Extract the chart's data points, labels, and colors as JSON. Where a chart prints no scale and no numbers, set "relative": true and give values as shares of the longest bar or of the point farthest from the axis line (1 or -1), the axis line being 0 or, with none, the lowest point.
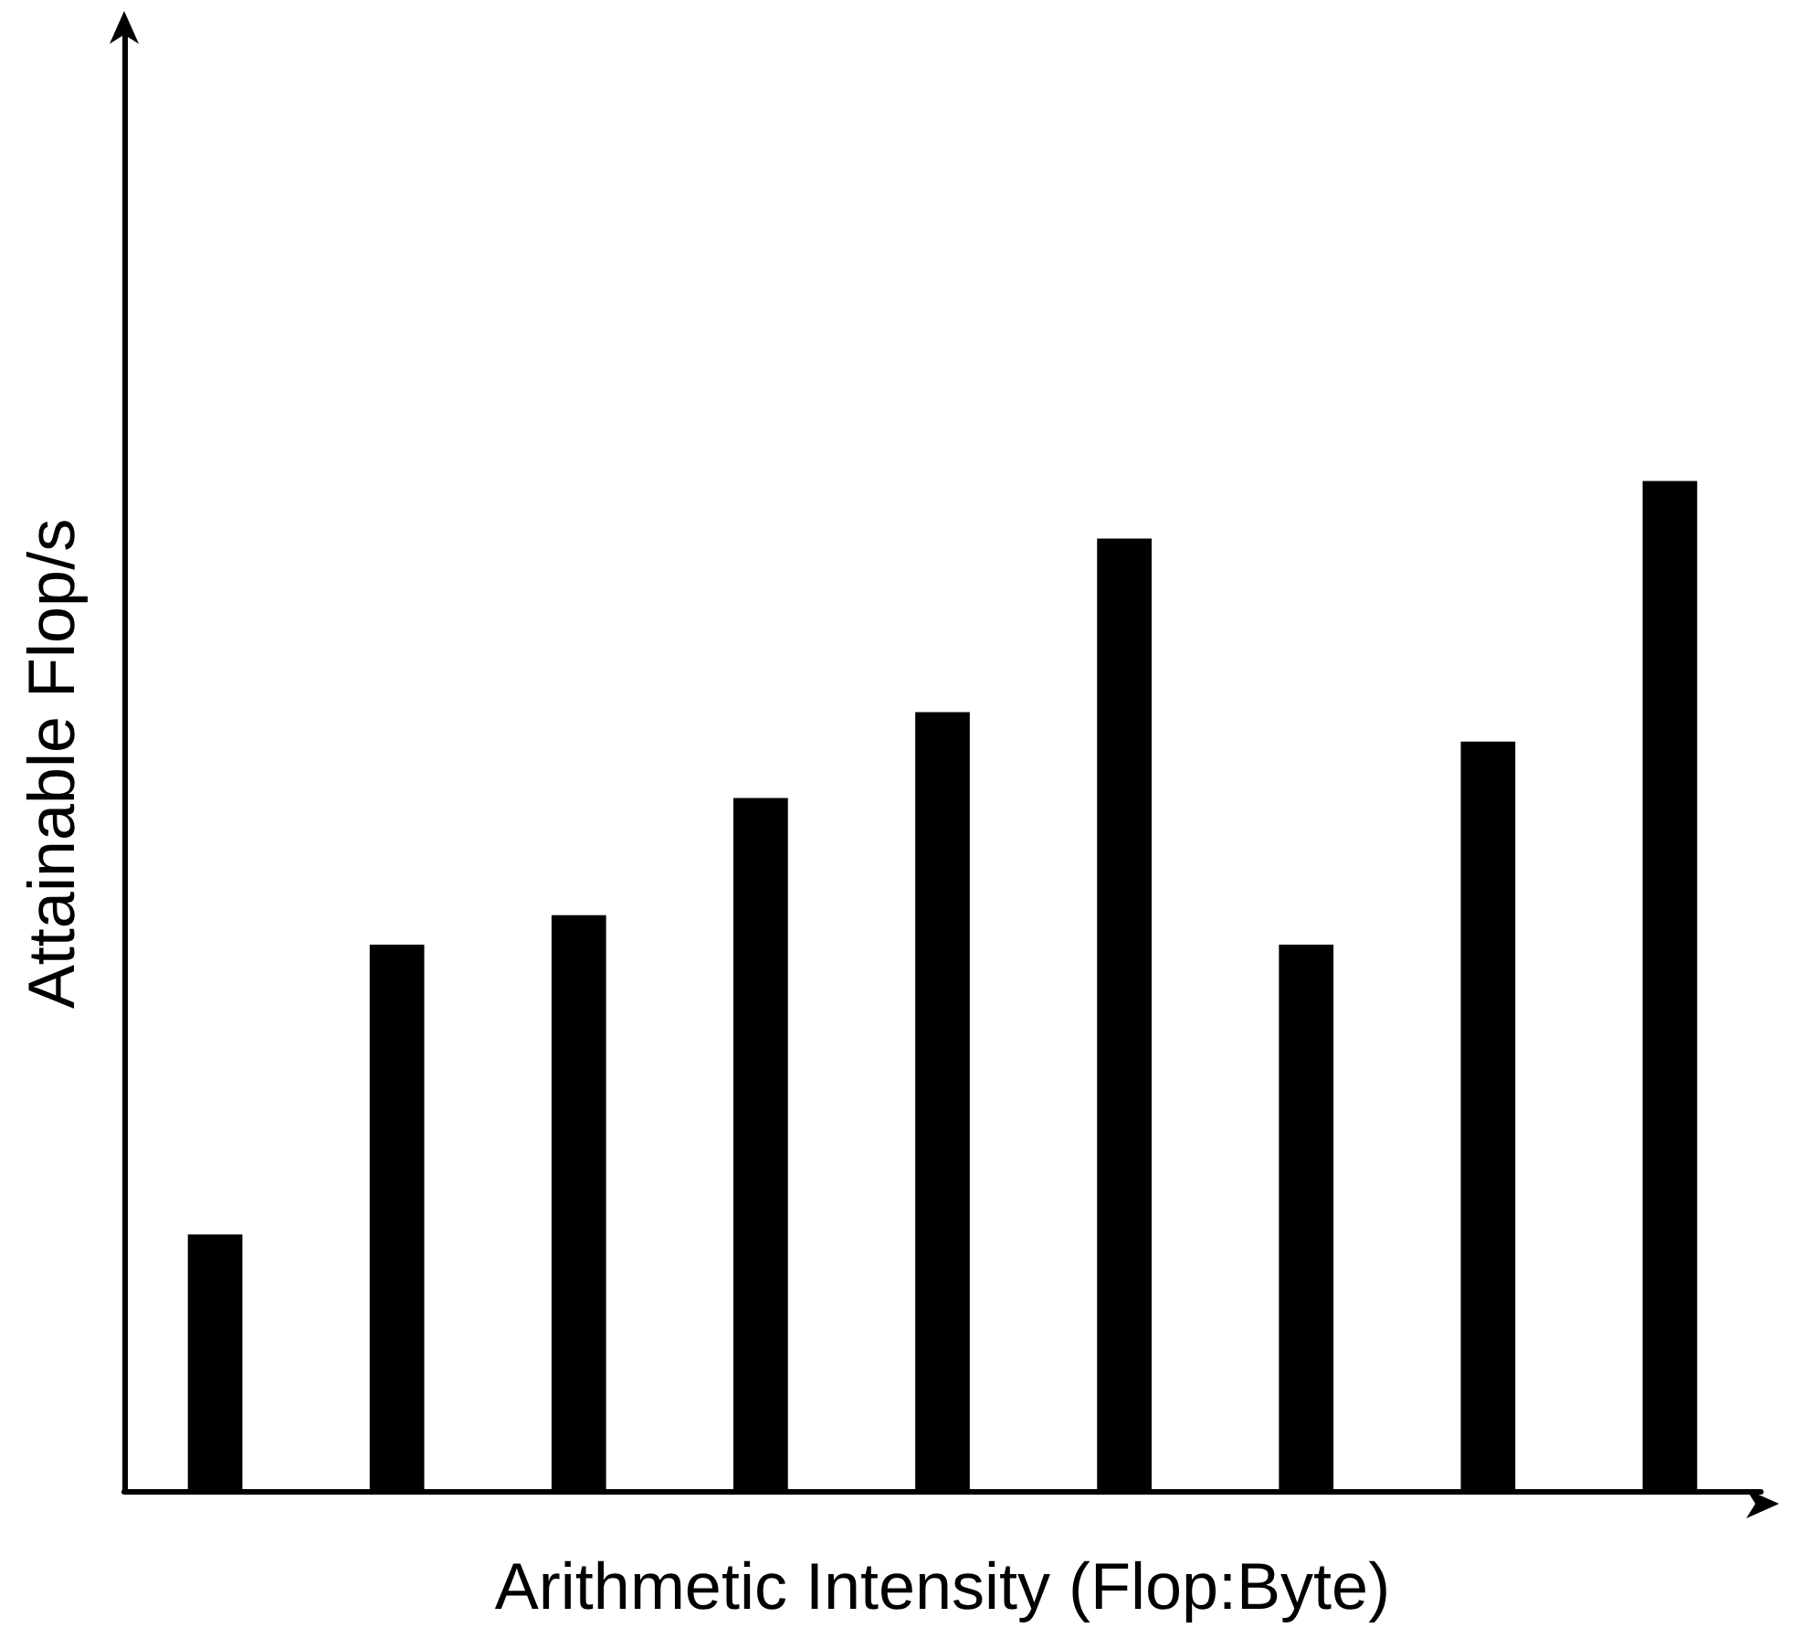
{
  "chart_data": {
    "type": "bar",
    "xlabel": "Arithmetic Intensity (Flop:Byte)",
    "ylabel": "Attainable Flop/s",
    "relative": true,
    "color": "#000000",
    "categories": [
      null,
      null,
      null,
      null,
      null,
      null,
      null,
      null,
      null
    ],
    "values": [
      0.254,
      0.541,
      0.57,
      0.686,
      0.771,
      0.943,
      0.541,
      0.742,
      1
    ]
  }
}
